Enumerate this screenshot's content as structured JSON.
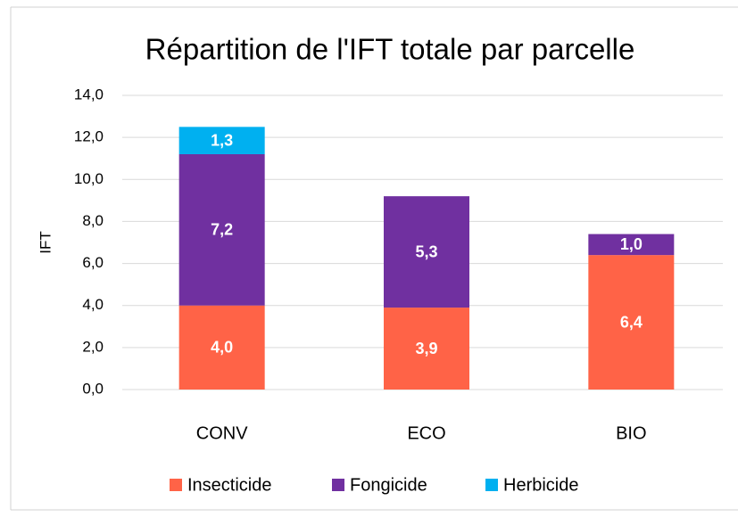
{
  "chart_data": {
    "type": "stacked_bar",
    "title": "Répartition de l'IFT totale par parcelle",
    "ylabel": "IFT",
    "categories": [
      "CONV",
      "ECO",
      "BIO"
    ],
    "series": [
      {
        "name": "Insecticide",
        "color": "#ff6347",
        "values": [
          4.0,
          3.9,
          6.4
        ],
        "value_labels": [
          "4,0",
          "3,9",
          "6,4"
        ]
      },
      {
        "name": "Fongicide",
        "color": "#7030a0",
        "values": [
          7.2,
          5.3,
          1.0
        ],
        "value_labels": [
          "7,2",
          "5,3",
          "1,0"
        ]
      },
      {
        "name": "Herbicide",
        "color": "#00b0f0",
        "values": [
          1.3,
          null,
          null
        ],
        "value_labels": [
          "1,3",
          null,
          null
        ]
      }
    ],
    "ylim": [
      0,
      14
    ],
    "yticks": [
      {
        "value": 0,
        "label": "0,0"
      },
      {
        "value": 2,
        "label": "2,0"
      },
      {
        "value": 4,
        "label": "4,0"
      },
      {
        "value": 6,
        "label": "6,0"
      },
      {
        "value": 8,
        "label": "8,0"
      },
      {
        "value": 10,
        "label": "10,0"
      },
      {
        "value": 12,
        "label": "12,0"
      },
      {
        "value": 14,
        "label": "14,0"
      }
    ],
    "grid": true,
    "legend": "bottom"
  }
}
